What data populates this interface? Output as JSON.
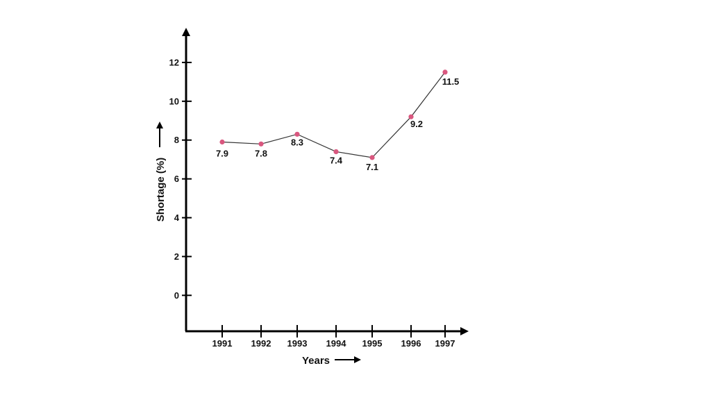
{
  "chart_data": {
    "type": "line",
    "title": "",
    "xlabel": "Years",
    "ylabel": "Shortage (%)",
    "categories": [
      "1991",
      "1992",
      "1993",
      "1994",
      "1995",
      "1996",
      "1997"
    ],
    "values": [
      7.9,
      7.8,
      8.3,
      7.4,
      7.1,
      9.2,
      11.5
    ],
    "data_labels": [
      "7.9",
      "7.8",
      "8.3",
      "7.4",
      "7.1",
      "9.2",
      "11.5"
    ],
    "yticks": [
      0,
      2,
      4,
      6,
      8,
      10,
      12
    ],
    "ylim": [
      -1.85,
      13.5
    ],
    "grid": false,
    "legend": "none",
    "colors": {
      "line": "#333333",
      "marker": "#d9577f",
      "axis": "#000000",
      "text": "#111111"
    }
  }
}
